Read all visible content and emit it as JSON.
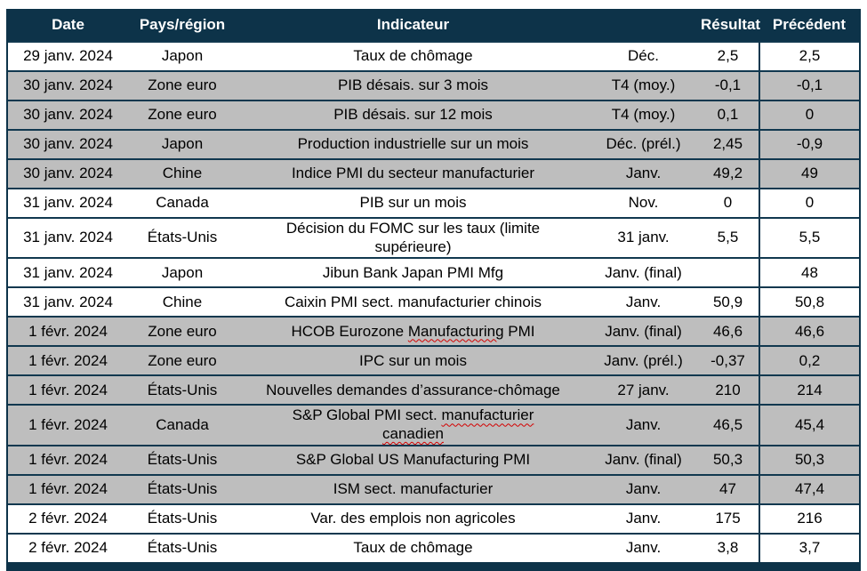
{
  "header": {
    "columns": [
      "Date",
      "Pays/région",
      "Indicateur",
      "",
      "Résultat",
      "Précédent"
    ]
  },
  "colors": {
    "header_bg": "#0d3349",
    "header_text": "#ffffff",
    "shaded_row_bg": "#bebebe",
    "grid_line": "#11384f",
    "spellcheck_squiggle": "#d40000"
  },
  "rows": [
    {
      "date": "29 janv. 2024",
      "region": "Japon",
      "indicator": "Taux de chômage",
      "period": "Déc.",
      "result": "2,5",
      "previous": "2,5",
      "shaded": false
    },
    {
      "date": "30 janv. 2024",
      "region": "Zone euro",
      "indicator": "PIB désais. sur 3 mois",
      "period": "T4 (moy.)",
      "result": "-0,1",
      "previous": "-0,1",
      "shaded": true
    },
    {
      "date": "30 janv. 2024",
      "region": "Zone euro",
      "indicator": "PIB désais. sur 12 mois",
      "period": "T4 (moy.)",
      "result": "0,1",
      "previous": "0",
      "shaded": true
    },
    {
      "date": "30 janv. 2024",
      "region": "Japon",
      "indicator": "Production industrielle sur un mois",
      "period": "Déc. (prél.)",
      "result": "2,45",
      "previous": "-0,9",
      "shaded": true
    },
    {
      "date": "30 janv. 2024",
      "region": "Chine",
      "indicator": "Indice PMI du secteur manufacturier",
      "period": "Janv.",
      "result": "49,2",
      "previous": "49",
      "shaded": true
    },
    {
      "date": "31 janv. 2024",
      "region": "Canada",
      "indicator": "PIB sur un mois",
      "period": "Nov.",
      "result": "0",
      "previous": "0",
      "shaded": false
    },
    {
      "date": "31 janv. 2024",
      "region": "États-Unis",
      "indicator": "Décision du FOMC sur les taux (limite supérieure)",
      "period": "31 janv.",
      "result": "5,5",
      "previous": "5,5",
      "shaded": false,
      "two_line": true
    },
    {
      "date": "31 janv. 2024",
      "region": "Japon",
      "indicator": "Jibun Bank Japan PMI Mfg",
      "period": "Janv. (final)",
      "result": "",
      "previous": "48",
      "shaded": false
    },
    {
      "date": "31 janv. 2024",
      "region": "Chine",
      "indicator": "Caixin PMI sect. manufacturier chinois",
      "period": "Janv.",
      "result": "50,9",
      "previous": "50,8",
      "shaded": false
    },
    {
      "date": "1 févr. 2024",
      "region": "Zone euro",
      "indicator": "HCOB Eurozone Manufacturing PMI",
      "period": "Janv. (final)",
      "result": "46,6",
      "previous": "46,6",
      "shaded": true,
      "squiggle_words": [
        "Manufacturing"
      ]
    },
    {
      "date": "1 févr. 2024",
      "region": "Zone euro",
      "indicator": "IPC sur un mois",
      "period": "Janv. (prél.)",
      "result": "-0,37",
      "previous": "0,2",
      "shaded": true
    },
    {
      "date": "1 févr. 2024",
      "region": "États-Unis",
      "indicator": "Nouvelles demandes d’assurance-chômage",
      "period": "27 janv.",
      "result": "210",
      "previous": "214",
      "shaded": true
    },
    {
      "date": "1 févr. 2024",
      "region": "Canada",
      "indicator": "S&P Global PMI sect. manufacturier canadien",
      "period": "Janv.",
      "result": "46,5",
      "previous": "45,4",
      "shaded": true,
      "two_line": true,
      "squiggle_words": [
        "manufacturier",
        "canadien"
      ]
    },
    {
      "date": "1 févr. 2024",
      "region": "États-Unis",
      "indicator": "S&P Global US Manufacturing PMI",
      "period": "Janv. (final)",
      "result": "50,3",
      "previous": "50,3",
      "shaded": true
    },
    {
      "date": "1 févr. 2024",
      "region": "États-Unis",
      "indicator": "ISM sect. manufacturier",
      "period": "Janv.",
      "result": "47",
      "previous": "47,4",
      "shaded": true
    },
    {
      "date": "2 févr. 2024",
      "region": "États-Unis",
      "indicator": "Var. des emplois non agricoles",
      "period": "Janv.",
      "result": "175",
      "previous": "216",
      "shaded": false
    },
    {
      "date": "2 févr. 2024",
      "region": "États-Unis",
      "indicator": "Taux de chômage",
      "period": "Janv.",
      "result": "3,8",
      "previous": "3,7",
      "shaded": false
    }
  ]
}
